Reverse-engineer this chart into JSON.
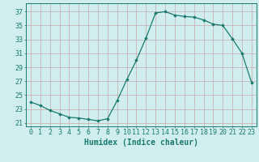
{
  "x": [
    0,
    1,
    2,
    3,
    4,
    5,
    6,
    7,
    8,
    9,
    10,
    11,
    12,
    13,
    14,
    15,
    16,
    17,
    18,
    19,
    20,
    21,
    22,
    23
  ],
  "y": [
    24.0,
    23.5,
    22.8,
    22.3,
    21.8,
    21.7,
    21.5,
    21.3,
    21.6,
    24.2,
    27.2,
    30.0,
    33.2,
    36.8,
    37.0,
    36.5,
    36.3,
    36.2,
    35.8,
    35.2,
    35.0,
    33.1,
    31.0,
    26.8
  ],
  "line_color": "#1a7a6e",
  "marker": "D",
  "marker_size": 1.8,
  "bg_color": "#d0eeee",
  "grid_color_major": "#c8a8a8",
  "grid_color_minor": "#ddd0d0",
  "xlabel": "Humidex (Indice chaleur)",
  "yticks": [
    21,
    23,
    25,
    27,
    29,
    31,
    33,
    35,
    37
  ],
  "xticks": [
    0,
    1,
    2,
    3,
    4,
    5,
    6,
    7,
    8,
    9,
    10,
    11,
    12,
    13,
    14,
    15,
    16,
    17,
    18,
    19,
    20,
    21,
    22,
    23
  ],
  "ylim": [
    20.5,
    38.2
  ],
  "xlim": [
    -0.5,
    23.5
  ],
  "tick_color": "#1a7a6e",
  "xlabel_fontsize": 7,
  "tick_fontsize": 6,
  "linewidth": 0.9
}
